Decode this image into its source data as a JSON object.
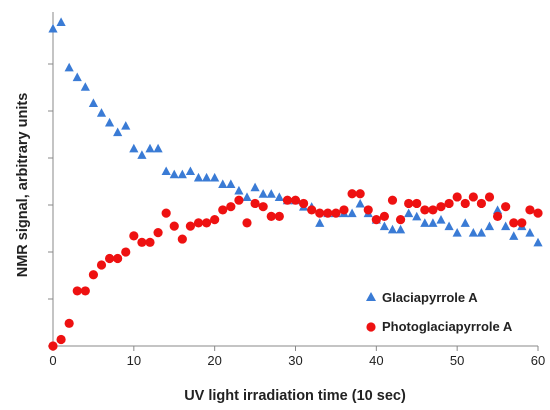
{
  "chart_data": {
    "type": "scatter",
    "title": "",
    "xlabel": "UV light irradiation time (10 sec)",
    "ylabel": "NMR signal, arbitrary units",
    "xlim": [
      0,
      60
    ],
    "ylim": [
      0,
      1
    ],
    "x_ticks": [
      0,
      10,
      20,
      30,
      40,
      50,
      60
    ],
    "y_tick_labels_shown": false,
    "grid": false,
    "legend_position": "bottom-right",
    "series": [
      {
        "name": "Glaciapyrrole A",
        "marker": "triangle",
        "color": "#3a7bd5",
        "x": [
          0,
          1,
          2,
          3,
          4,
          5,
          6,
          7,
          8,
          9,
          10,
          11,
          12,
          13,
          14,
          15,
          16,
          17,
          18,
          19,
          20,
          21,
          22,
          23,
          24,
          25,
          26,
          27,
          28,
          29,
          30,
          31,
          32,
          33,
          34,
          35,
          36,
          37,
          38,
          39,
          40,
          41,
          42,
          43,
          44,
          45,
          46,
          47,
          48,
          49,
          50,
          51,
          52,
          53,
          54,
          55,
          56,
          57,
          58,
          59,
          60
        ],
        "y": [
          0.98,
          1.0,
          0.86,
          0.83,
          0.8,
          0.75,
          0.72,
          0.69,
          0.66,
          0.68,
          0.61,
          0.59,
          0.61,
          0.61,
          0.54,
          0.53,
          0.53,
          0.54,
          0.52,
          0.52,
          0.52,
          0.5,
          0.5,
          0.48,
          0.46,
          0.49,
          0.47,
          0.47,
          0.46,
          0.45,
          0.45,
          0.43,
          0.43,
          0.38,
          0.41,
          0.41,
          0.41,
          0.41,
          0.44,
          0.41,
          0.39,
          0.37,
          0.36,
          0.36,
          0.41,
          0.4,
          0.38,
          0.38,
          0.39,
          0.37,
          0.35,
          0.38,
          0.35,
          0.35,
          0.37,
          0.42,
          0.37,
          0.34,
          0.37,
          0.35,
          0.32
        ]
      },
      {
        "name": "Photoglaciapyrrole A",
        "marker": "circle",
        "color": "#ee1111",
        "x": [
          0,
          1,
          2,
          3,
          4,
          5,
          6,
          7,
          8,
          9,
          10,
          11,
          12,
          13,
          14,
          15,
          16,
          17,
          18,
          19,
          20,
          21,
          22,
          23,
          24,
          25,
          26,
          27,
          28,
          29,
          30,
          31,
          32,
          33,
          34,
          35,
          36,
          37,
          38,
          39,
          40,
          41,
          42,
          43,
          44,
          45,
          46,
          47,
          48,
          49,
          50,
          51,
          52,
          53,
          54,
          55,
          56,
          57,
          58,
          59,
          60
        ],
        "y": [
          0.0,
          0.02,
          0.07,
          0.17,
          0.17,
          0.22,
          0.25,
          0.27,
          0.27,
          0.29,
          0.34,
          0.32,
          0.32,
          0.35,
          0.41,
          0.37,
          0.33,
          0.37,
          0.38,
          0.38,
          0.39,
          0.42,
          0.43,
          0.45,
          0.38,
          0.44,
          0.43,
          0.4,
          0.4,
          0.45,
          0.45,
          0.44,
          0.42,
          0.41,
          0.41,
          0.41,
          0.42,
          0.47,
          0.47,
          0.42,
          0.39,
          0.4,
          0.45,
          0.39,
          0.44,
          0.44,
          0.42,
          0.42,
          0.43,
          0.44,
          0.46,
          0.44,
          0.46,
          0.44,
          0.46,
          0.4,
          0.43,
          0.38,
          0.38,
          0.42,
          0.41
        ]
      }
    ]
  }
}
